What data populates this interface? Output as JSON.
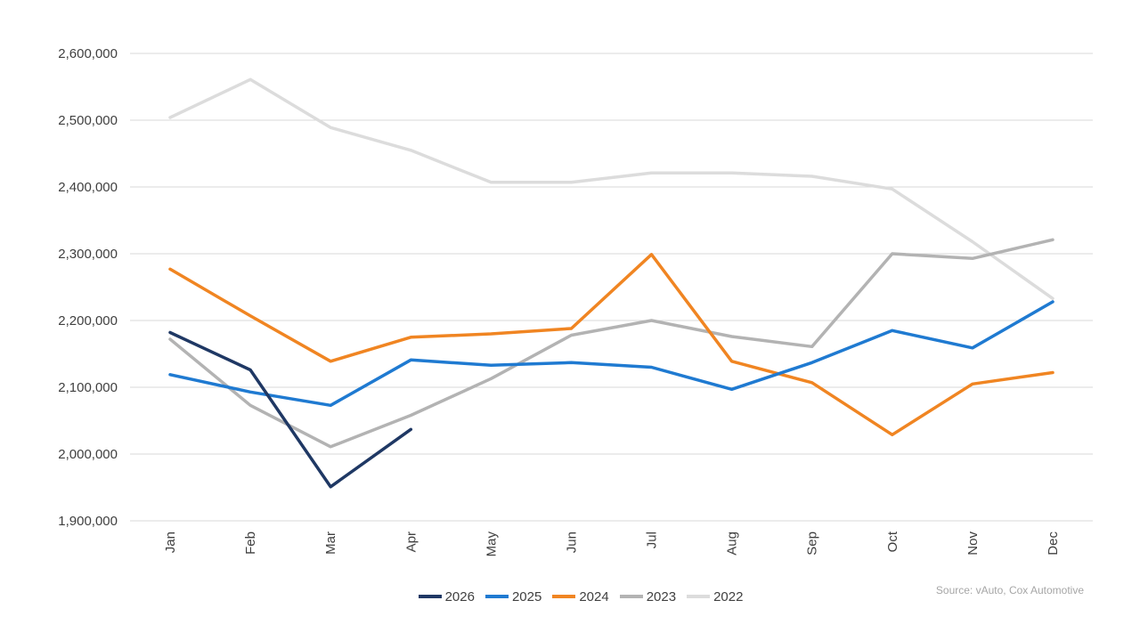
{
  "chart_data": {
    "type": "line",
    "title": "",
    "xlabel": "",
    "ylabel": "",
    "categories": [
      "Jan",
      "Feb",
      "Mar",
      "Apr",
      "May",
      "Jun",
      "Jul",
      "Aug",
      "Sep",
      "Oct",
      "Nov",
      "Dec"
    ],
    "ylim": [
      1900000,
      2600000
    ],
    "yticks": [
      1900000,
      2000000,
      2100000,
      2200000,
      2300000,
      2400000,
      2500000,
      2600000
    ],
    "ytick_labels": [
      "1,900,000",
      "2,000,000",
      "2,100,000",
      "2,200,000",
      "2,300,000",
      "2,400,000",
      "2,500,000",
      "2,600,000"
    ],
    "grid": true,
    "legend_position": "bottom",
    "series": [
      {
        "name": "2026",
        "color": "#1f3864",
        "values": [
          2182000,
          2126000,
          1951000,
          2037000,
          null,
          null,
          null,
          null,
          null,
          null,
          null,
          null
        ]
      },
      {
        "name": "2025",
        "color": "#1f7ad1",
        "values": [
          2119000,
          2093000,
          2073000,
          2141000,
          2133000,
          2137000,
          2130000,
          2097000,
          2137000,
          2185000,
          2159000,
          2228000
        ]
      },
      {
        "name": "2024",
        "color": "#f08522",
        "values": [
          2277000,
          2207000,
          2139000,
          2175000,
          2180000,
          2188000,
          2299000,
          2139000,
          2107000,
          2029000,
          2105000,
          2122000
        ]
      },
      {
        "name": "2023",
        "color": "#b3b3b3",
        "values": [
          2172000,
          2073000,
          2011000,
          2058000,
          2113000,
          2178000,
          2200000,
          2176000,
          2161000,
          2300000,
          2293000,
          2321000
        ]
      },
      {
        "name": "2022",
        "color": "#dcdcdc",
        "values": [
          2504000,
          2561000,
          2489000,
          2455000,
          2407000,
          2407000,
          2421000,
          2421000,
          2416000,
          2397000,
          2318000,
          2233000
        ]
      }
    ],
    "source_note": "Source: vAuto, Cox Automotive"
  }
}
